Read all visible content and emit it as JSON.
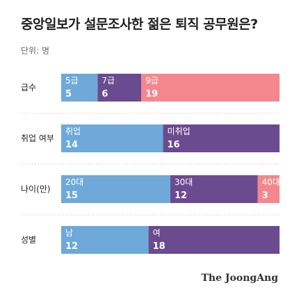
{
  "title": "중앙일보가 설문조사한 젊은 퇴직 공무원은?",
  "unit_label": "단위: 명",
  "brand": "The JoongAng",
  "colors": {
    "blue": "#6ea9d9",
    "purple": "#6b4b8f",
    "pink": "#f4878d",
    "text_on_bar": "#ffffff",
    "divider": "#d9d9d9"
  },
  "chart_data": {
    "type": "bar",
    "stacked": true,
    "orientation": "horizontal",
    "title": "중앙일보가 설문조사한 젊은 퇴직 공무원은?",
    "unit": "단위: 명",
    "rows": [
      {
        "label": "급수",
        "segments": [
          {
            "name": "5급",
            "value": 5,
            "color": "#6ea9d9"
          },
          {
            "name": "7급",
            "value": 6,
            "color": "#6b4b8f"
          },
          {
            "name": "9급",
            "value": 19,
            "color": "#f4878d"
          }
        ]
      },
      {
        "label": "취업 여부",
        "segments": [
          {
            "name": "취업",
            "value": 14,
            "color": "#6ea9d9"
          },
          {
            "name": "미취업",
            "value": 16,
            "color": "#6b4b8f"
          }
        ]
      },
      {
        "label": "나이(만)",
        "segments": [
          {
            "name": "20대",
            "value": 15,
            "color": "#6ea9d9"
          },
          {
            "name": "30대",
            "value": 12,
            "color": "#6b4b8f"
          },
          {
            "name": "40대",
            "value": 3,
            "color": "#f4878d"
          }
        ]
      },
      {
        "label": "성별",
        "segments": [
          {
            "name": "남",
            "value": 12,
            "color": "#6ea9d9"
          },
          {
            "name": "여",
            "value": 18,
            "color": "#6b4b8f"
          }
        ]
      }
    ]
  }
}
